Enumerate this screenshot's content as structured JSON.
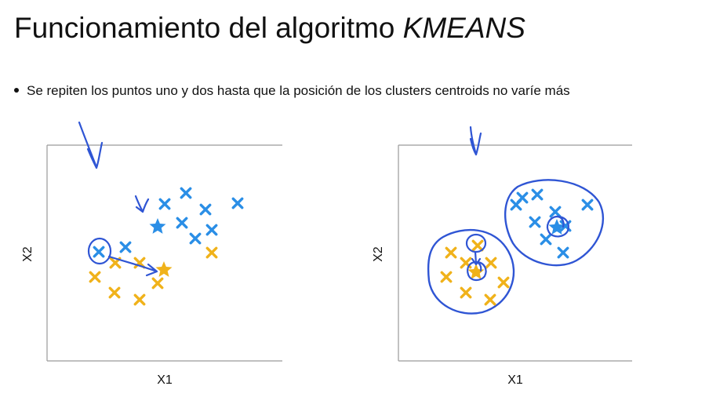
{
  "slide": {
    "title": "Funcionamiento del algoritmo ",
    "title_emphasis": "KMEANS",
    "bullet": "Se repiten los puntos uno y dos hasta que la posición de los clusters centroids no varíe más"
  },
  "plots": [
    {
      "xlabel": "X1",
      "ylabel": "X2"
    },
    {
      "xlabel": "X1",
      "ylabel": "X2"
    }
  ],
  "colors": {
    "cluster_blue": "#2a8ee6",
    "cluster_orange": "#f0b21a",
    "annotation_ink": "#2f55d4",
    "axis": "#9a9a9a"
  }
}
